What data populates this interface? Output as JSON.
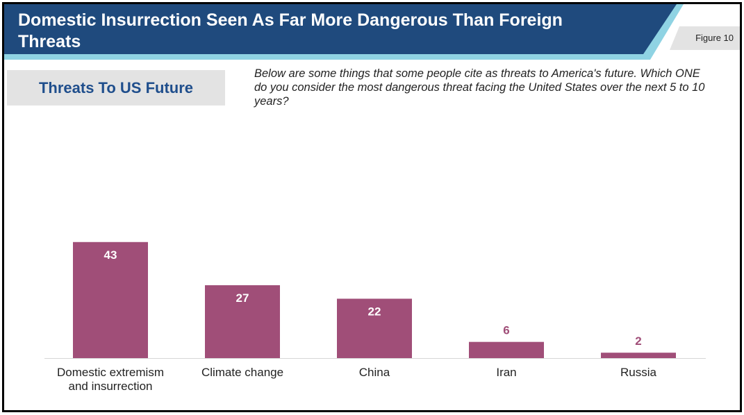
{
  "header": {
    "title": "Domestic Insurrection Seen As Far More Dangerous Than Foreign Threats",
    "figure_label": "Figure 10"
  },
  "subtitle": "Threats To US Future",
  "question": "Below are some things that some people cite as threats to America's future. Which ONE do you consider the most dangerous threat facing the United States over the next 5 to 10 years?",
  "colors": {
    "title_band": "#1f4a7d",
    "title_accent": "#8fd3e3",
    "bar": "#a04e78",
    "label_inside": "#ffffff",
    "label_outside": "#a04e78"
  },
  "chart_data": {
    "type": "bar",
    "categories": [
      "Domestic extremism and insurrection",
      "Climate change",
      "China",
      "Iran",
      "Russia"
    ],
    "category_lines": [
      [
        "Domestic extremism",
        "and insurrection"
      ],
      [
        "Climate change"
      ],
      [
        "China"
      ],
      [
        "Iran"
      ],
      [
        "Russia"
      ]
    ],
    "values": [
      43,
      27,
      22,
      6,
      2
    ],
    "data_labels": [
      "43",
      "27",
      "22",
      "6",
      "2"
    ],
    "title": "",
    "xlabel": "",
    "ylabel": "",
    "ylim": [
      0,
      45
    ],
    "grid": false,
    "legend": "none"
  }
}
